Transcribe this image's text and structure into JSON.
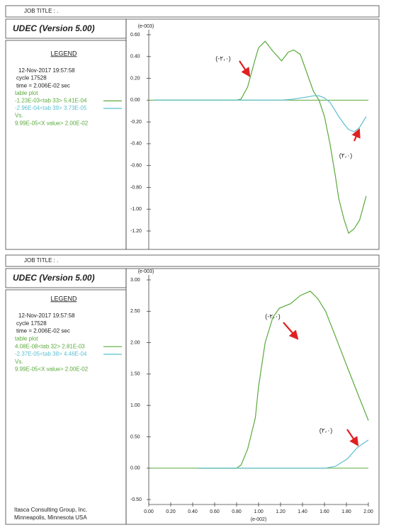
{
  "chart_data": [
    {
      "type": "line",
      "job_title": "JOB TITLE : .",
      "program": "UDEC (Version 5.00)",
      "legend_title": "LEGEND",
      "date": "12-Nov-2017  19:57:58",
      "cycle": "cycle    17528",
      "time": "time  =  2.006E-02 sec",
      "table_plot": "table plot",
      "vs": "Vs.",
      "x_value": "9.99E-05<X value> 2.00E-02",
      "y_unit": "(e-003)",
      "xlim": [
        0,
        2
      ],
      "ylim": [
        -1.2,
        0.6
      ],
      "yticks": [
        {
          "value": 0.6,
          "label": "0.60"
        },
        {
          "value": 0.4,
          "label": "0.40"
        },
        {
          "value": 0.2,
          "label": "0.20"
        },
        {
          "value": 0,
          "label": "0.00"
        },
        {
          "value": -0.2,
          "label": "-0.20"
        },
        {
          "value": -0.4,
          "label": "-0.40"
        },
        {
          "value": -0.6,
          "label": "-0.60"
        },
        {
          "value": -0.8,
          "label": "-0.80"
        },
        {
          "value": -1,
          "label": "-1.00"
        },
        {
          "value": -1.2,
          "label": "-1.20"
        }
      ],
      "x": [
        0.05,
        0.2,
        0.4,
        0.6,
        0.8,
        0.84,
        0.9,
        0.97,
        1.0,
        1.06,
        1.13,
        1.21,
        1.27,
        1.32,
        1.38,
        1.45,
        1.5,
        1.55,
        1.6,
        1.65,
        1.7,
        1.73,
        1.78,
        1.82,
        1.87,
        1.92,
        1.98
      ],
      "series": [
        {
          "name": "-1.23E-03<tab  33> 5.41E-04",
          "color": "#5aaa3c",
          "values": [
            0,
            0,
            0,
            0,
            0,
            0.01,
            0.12,
            0.38,
            0.48,
            0.54,
            0.45,
            0.36,
            0.44,
            0.46,
            0.42,
            0.22,
            0.08,
            0,
            -0.15,
            -0.4,
            -0.7,
            -0.9,
            -1.1,
            -1.22,
            -1.18,
            -1.1,
            -0.88
          ]
        },
        {
          "name": "-2.96E-04<tab  39> 3.73E-05",
          "color": "#5bbfd0",
          "values": [
            0,
            0,
            0,
            0,
            0,
            0,
            0,
            0,
            0,
            0,
            0,
            0,
            0.005,
            0.01,
            0.02,
            0.03,
            0.04,
            0.04,
            0.02,
            -0.02,
            -0.1,
            -0.15,
            -0.22,
            -0.27,
            -0.29,
            -0.25,
            -0.15
          ]
        }
      ],
      "annotations": [
        "(-٢،٠)",
        "(٢،٠)"
      ]
    },
    {
      "type": "line",
      "job_title": "JOB TITLE : .",
      "program": "UDEC (Version 5.00)",
      "legend_title": "LEGEND",
      "date": "12-Nov-2017  19:57:58",
      "cycle": "cycle    17528",
      "time": "time  =  2.006E-02 sec",
      "table_plot": "table plot",
      "vs": "Vs.",
      "x_value": "9.99E-05<X value> 2.00E-02",
      "y_unit": "(e-003)",
      "x_unit": "(e-002)",
      "xlim": [
        0,
        2
      ],
      "xticks": [
        {
          "value": 0,
          "label": "0.00"
        },
        {
          "value": 0.2,
          "label": "0.20"
        },
        {
          "value": 0.4,
          "label": "0.40"
        },
        {
          "value": 0.6,
          "label": "0.60"
        },
        {
          "value": 0.8,
          "label": "0.80"
        },
        {
          "value": 1,
          "label": "1.00"
        },
        {
          "value": 1.2,
          "label": "1.20"
        },
        {
          "value": 1.4,
          "label": "1.40"
        },
        {
          "value": 1.6,
          "label": "1.60"
        },
        {
          "value": 1.8,
          "label": "1.80"
        },
        {
          "value": 2,
          "label": "2.00"
        }
      ],
      "ylim": [
        -0.5,
        3
      ],
      "yticks": [
        {
          "value": 3,
          "label": "3.00"
        },
        {
          "value": 2.5,
          "label": "2.50"
        },
        {
          "value": 2,
          "label": "2.00"
        },
        {
          "value": 1.5,
          "label": "1.50"
        },
        {
          "value": 1,
          "label": "1.00"
        },
        {
          "value": 0.5,
          "label": "0.50"
        },
        {
          "value": 0,
          "label": "0.00"
        },
        {
          "value": -0.5,
          "label": "-0.50"
        }
      ],
      "x": [
        0.45,
        0.6,
        0.8,
        0.84,
        0.9,
        0.97,
        1.0,
        1.06,
        1.13,
        1.19,
        1.29,
        1.38,
        1.47,
        1.54,
        1.61,
        1.7,
        1.81,
        1.9,
        2.0
      ],
      "series": [
        {
          "name": "4.08E-08<tab  32> 2.81E-03",
          "color": "#5aaa3c",
          "values": [
            0,
            0,
            0,
            0.05,
            0.3,
            0.8,
            1.3,
            2.0,
            2.4,
            2.55,
            2.62,
            2.75,
            2.82,
            2.7,
            2.5,
            2.1,
            1.6,
            1.2,
            0.76
          ]
        },
        {
          "name": "-2.37E-05<tab  38> 4.46E-04",
          "color": "#5bbfd0",
          "values": [
            0,
            0,
            0,
            0,
            0,
            0,
            0,
            0,
            0,
            0,
            0,
            0,
            0,
            0,
            0,
            0.03,
            0.15,
            0.33,
            0.45
          ]
        }
      ],
      "annotations": [
        "(-٢،٠)",
        "(٢،٠)"
      ]
    }
  ],
  "footer": [
    "Itasca Consulting Group, Inc.",
    "Minneapolis, Minnesota  USA"
  ]
}
